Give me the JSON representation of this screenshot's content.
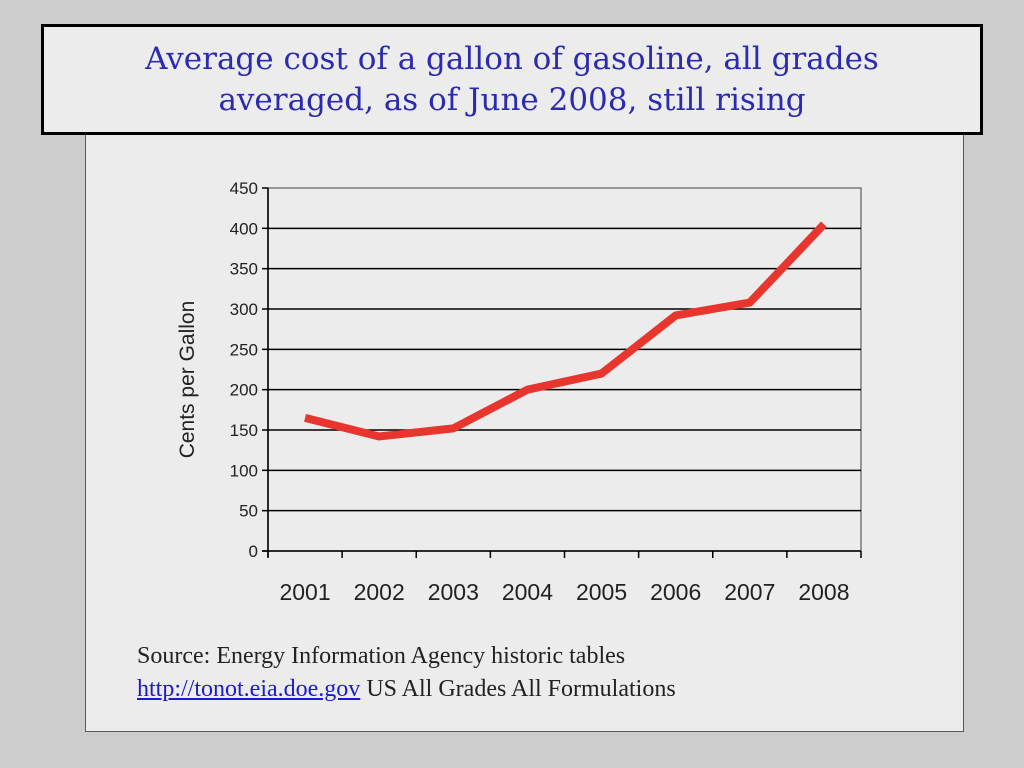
{
  "title": {
    "line1": "Average cost of a gallon of gasoline, all grades",
    "line2": "averaged, as of June 2008, still rising"
  },
  "chart_data": {
    "type": "line",
    "title": "Average cost of a gallon of gasoline, all grades averaged, as of June 2008, still rising",
    "xlabel": "",
    "ylabel": "Cents per Gallon",
    "categories": [
      "2001",
      "2002",
      "2003",
      "2004",
      "2005",
      "2006",
      "2007",
      "2008"
    ],
    "series": [
      {
        "values": [
          165,
          142,
          152,
          200,
          220,
          292,
          308,
          405
        ]
      }
    ],
    "ylim": [
      0,
      450
    ],
    "yticks": [
      0,
      50,
      100,
      150,
      200,
      250,
      300,
      350,
      400,
      450
    ],
    "grid": true,
    "colors": {
      "line": "#e8352e",
      "grid": "#000000",
      "frame": "#7a7a7a"
    }
  },
  "source": {
    "line1": "Source: Energy Information Agency historic tables",
    "link": "http://tonot.eia.doe.gov",
    "line2_rest": " US All Grades All Formulations"
  }
}
